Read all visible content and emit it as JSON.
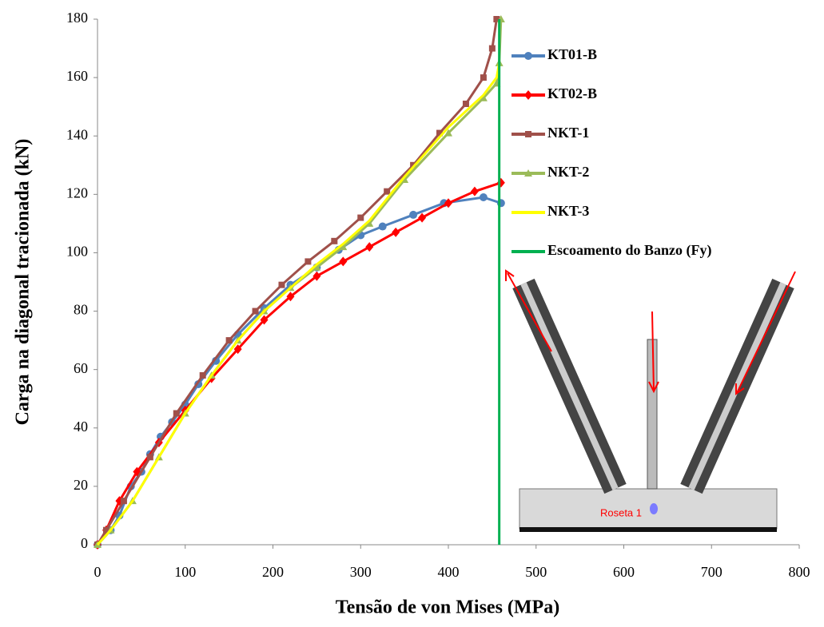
{
  "chart_data": {
    "type": "line",
    "xlabel": "Tensão de von Mises (MPa)",
    "ylabel": "Carga na diagonal tracionada (kN)",
    "xlim": [
      0,
      800
    ],
    "xticks": [
      0,
      100,
      200,
      300,
      400,
      500,
      600,
      700,
      800
    ],
    "ylim": [
      0,
      180
    ],
    "yticks": [
      0,
      20,
      40,
      60,
      80,
      100,
      120,
      140,
      160,
      180
    ],
    "grid": false,
    "legend": "right",
    "annotations": [
      "Roseta 1"
    ],
    "series": [
      {
        "name": "KT01-B",
        "color": "#4f81bd",
        "marker": "circle",
        "x": [
          0,
          15,
          25,
          38,
          50,
          60,
          72,
          85,
          100,
          115,
          135,
          160,
          190,
          220,
          250,
          275,
          300,
          325,
          360,
          395,
          440,
          460
        ],
        "values": [
          0,
          5,
          10,
          20,
          25,
          31,
          37,
          42,
          48,
          55,
          63,
          72,
          81,
          89,
          95,
          101,
          106,
          109,
          113,
          117,
          119,
          117
        ]
      },
      {
        "name": "KT02-B",
        "color": "#ff0000",
        "marker": "diamond",
        "x": [
          0,
          10,
          25,
          45,
          70,
          100,
          130,
          160,
          190,
          220,
          250,
          280,
          310,
          340,
          370,
          400,
          430,
          460
        ],
        "values": [
          0,
          5,
          15,
          25,
          35,
          46,
          57,
          67,
          77,
          85,
          92,
          97,
          102,
          107,
          112,
          117,
          121,
          124
        ]
      },
      {
        "name": "NKT-1",
        "color": "#a0504a",
        "marker": "square",
        "x": [
          0,
          10,
          30,
          60,
          90,
          120,
          150,
          180,
          210,
          240,
          270,
          300,
          330,
          360,
          390,
          420,
          440,
          450,
          455
        ],
        "values": [
          0,
          5,
          15,
          30,
          45,
          58,
          70,
          80,
          89,
          97,
          104,
          112,
          121,
          130,
          141,
          151,
          160,
          170,
          180
        ]
      },
      {
        "name": "NKT-2",
        "color": "#9bbb59",
        "marker": "triangle",
        "x": [
          0,
          15,
          40,
          70,
          100,
          130,
          160,
          190,
          220,
          250,
          280,
          310,
          350,
          400,
          440,
          455,
          458,
          460
        ],
        "values": [
          0,
          5,
          15,
          30,
          45,
          58,
          70,
          80,
          88,
          95,
          102,
          110,
          125,
          141,
          153,
          158,
          165,
          180
        ]
      },
      {
        "name": "NKT-3",
        "color": "#ffff00",
        "marker": "none",
        "x": [
          0,
          15,
          40,
          70,
          100,
          130,
          160,
          190,
          220,
          250,
          280,
          310,
          350,
          400,
          440,
          455,
          458
        ],
        "values": [
          0,
          5,
          15,
          30,
          45,
          58,
          70,
          80,
          88,
          96,
          103,
          111,
          126,
          143,
          154,
          160,
          165
        ]
      },
      {
        "name": "Escoamento do Banzo (Fy)",
        "color": "#00b050",
        "marker": "none",
        "x": [
          458,
          458
        ],
        "values": [
          0,
          180
        ]
      }
    ]
  }
}
